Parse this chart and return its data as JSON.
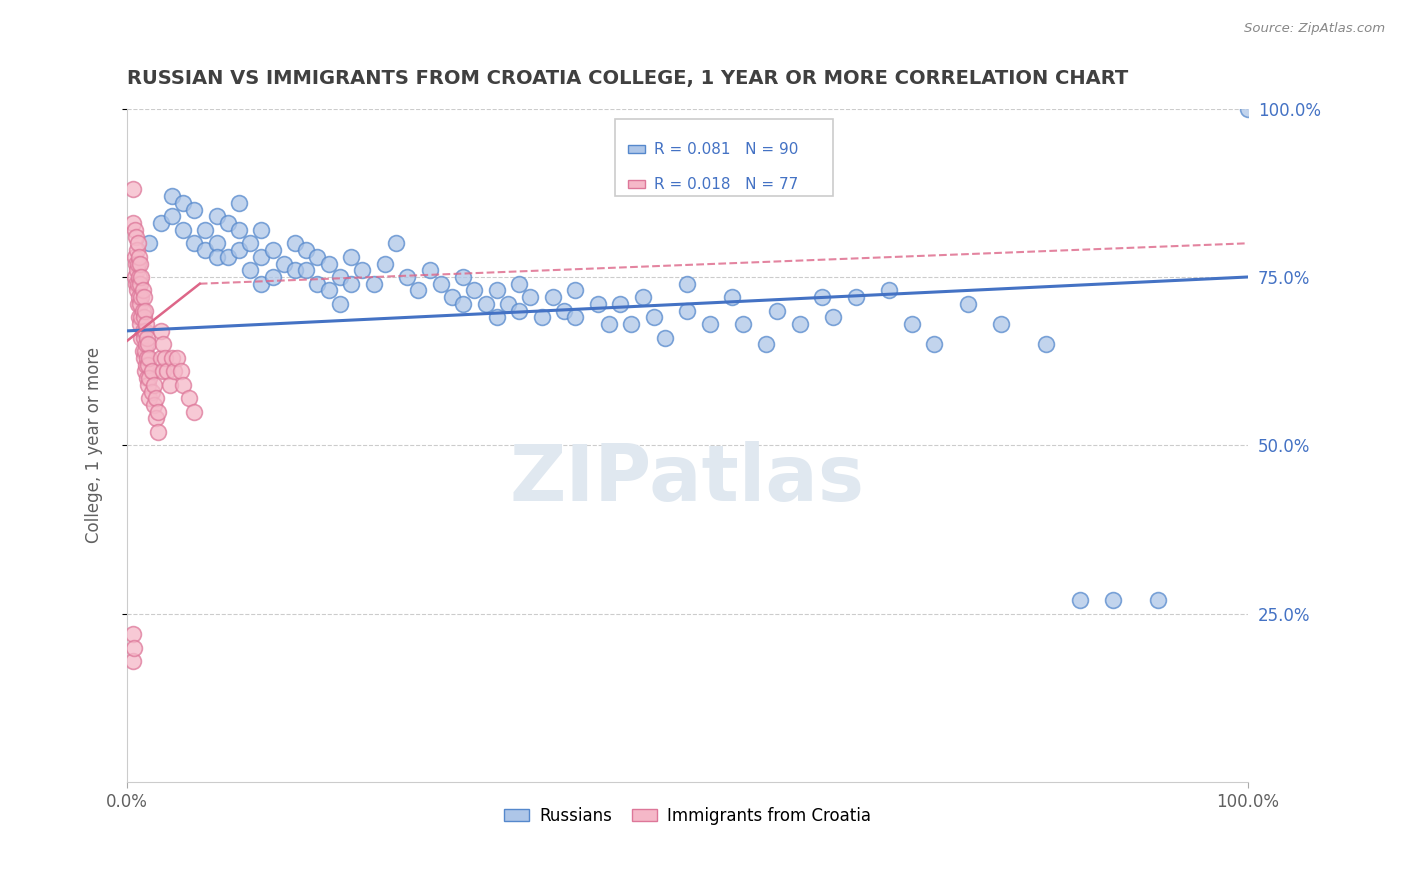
{
  "title": "RUSSIAN VS IMMIGRANTS FROM CROATIA COLLEGE, 1 YEAR OR MORE CORRELATION CHART",
  "source": "Source: ZipAtlas.com",
  "ylabel": "College, 1 year or more",
  "xlim": [
    0.0,
    1.0
  ],
  "ylim": [
    0.0,
    1.0
  ],
  "ytick_labels": [
    "25.0%",
    "50.0%",
    "75.0%",
    "100.0%"
  ],
  "ytick_positions": [
    0.25,
    0.5,
    0.75,
    1.0
  ],
  "blue_R": "R = 0.081",
  "blue_N": "N = 90",
  "pink_R": "R = 0.018",
  "pink_N": "N = 77",
  "legend_russians": "Russians",
  "legend_croatia": "Immigrants from Croatia",
  "blue_color": "#aec6e8",
  "pink_color": "#f5b8c8",
  "blue_edge_color": "#5588cc",
  "pink_edge_color": "#dd7799",
  "blue_line_color": "#4472c4",
  "pink_line_color": "#dd6688",
  "watermark": "ZIPatlas",
  "blue_points": [
    [
      0.02,
      0.8
    ],
    [
      0.03,
      0.83
    ],
    [
      0.04,
      0.87
    ],
    [
      0.04,
      0.84
    ],
    [
      0.05,
      0.86
    ],
    [
      0.05,
      0.82
    ],
    [
      0.06,
      0.85
    ],
    [
      0.06,
      0.8
    ],
    [
      0.07,
      0.82
    ],
    [
      0.07,
      0.79
    ],
    [
      0.08,
      0.84
    ],
    [
      0.08,
      0.8
    ],
    [
      0.08,
      0.78
    ],
    [
      0.09,
      0.83
    ],
    [
      0.09,
      0.78
    ],
    [
      0.1,
      0.86
    ],
    [
      0.1,
      0.82
    ],
    [
      0.1,
      0.79
    ],
    [
      0.11,
      0.8
    ],
    [
      0.11,
      0.76
    ],
    [
      0.12,
      0.82
    ],
    [
      0.12,
      0.78
    ],
    [
      0.12,
      0.74
    ],
    [
      0.13,
      0.79
    ],
    [
      0.13,
      0.75
    ],
    [
      0.14,
      0.77
    ],
    [
      0.15,
      0.8
    ],
    [
      0.15,
      0.76
    ],
    [
      0.16,
      0.79
    ],
    [
      0.16,
      0.76
    ],
    [
      0.17,
      0.78
    ],
    [
      0.17,
      0.74
    ],
    [
      0.18,
      0.77
    ],
    [
      0.18,
      0.73
    ],
    [
      0.19,
      0.75
    ],
    [
      0.19,
      0.71
    ],
    [
      0.2,
      0.78
    ],
    [
      0.2,
      0.74
    ],
    [
      0.21,
      0.76
    ],
    [
      0.22,
      0.74
    ],
    [
      0.23,
      0.77
    ],
    [
      0.24,
      0.8
    ],
    [
      0.25,
      0.75
    ],
    [
      0.26,
      0.73
    ],
    [
      0.27,
      0.76
    ],
    [
      0.28,
      0.74
    ],
    [
      0.29,
      0.72
    ],
    [
      0.3,
      0.75
    ],
    [
      0.3,
      0.71
    ],
    [
      0.31,
      0.73
    ],
    [
      0.32,
      0.71
    ],
    [
      0.33,
      0.73
    ],
    [
      0.33,
      0.69
    ],
    [
      0.34,
      0.71
    ],
    [
      0.35,
      0.74
    ],
    [
      0.35,
      0.7
    ],
    [
      0.36,
      0.72
    ],
    [
      0.37,
      0.69
    ],
    [
      0.38,
      0.72
    ],
    [
      0.39,
      0.7
    ],
    [
      0.4,
      0.73
    ],
    [
      0.4,
      0.69
    ],
    [
      0.42,
      0.71
    ],
    [
      0.43,
      0.68
    ],
    [
      0.44,
      0.71
    ],
    [
      0.45,
      0.68
    ],
    [
      0.46,
      0.72
    ],
    [
      0.47,
      0.69
    ],
    [
      0.48,
      0.66
    ],
    [
      0.5,
      0.74
    ],
    [
      0.5,
      0.7
    ],
    [
      0.52,
      0.68
    ],
    [
      0.54,
      0.72
    ],
    [
      0.55,
      0.68
    ],
    [
      0.57,
      0.65
    ],
    [
      0.58,
      0.7
    ],
    [
      0.6,
      0.68
    ],
    [
      0.62,
      0.72
    ],
    [
      0.63,
      0.69
    ],
    [
      0.65,
      0.72
    ],
    [
      0.68,
      0.73
    ],
    [
      0.7,
      0.68
    ],
    [
      0.72,
      0.65
    ],
    [
      0.75,
      0.71
    ],
    [
      0.78,
      0.68
    ],
    [
      0.82,
      0.65
    ],
    [
      0.85,
      0.27
    ],
    [
      0.88,
      0.27
    ],
    [
      0.92,
      0.27
    ],
    [
      1.0,
      1.0
    ]
  ],
  "pink_points": [
    [
      0.005,
      0.88
    ],
    [
      0.005,
      0.83
    ],
    [
      0.007,
      0.82
    ],
    [
      0.007,
      0.78
    ],
    [
      0.007,
      0.75
    ],
    [
      0.008,
      0.81
    ],
    [
      0.008,
      0.77
    ],
    [
      0.008,
      0.74
    ],
    [
      0.009,
      0.79
    ],
    [
      0.009,
      0.76
    ],
    [
      0.009,
      0.73
    ],
    [
      0.01,
      0.8
    ],
    [
      0.01,
      0.77
    ],
    [
      0.01,
      0.74
    ],
    [
      0.01,
      0.71
    ],
    [
      0.011,
      0.78
    ],
    [
      0.011,
      0.75
    ],
    [
      0.011,
      0.72
    ],
    [
      0.011,
      0.69
    ],
    [
      0.012,
      0.77
    ],
    [
      0.012,
      0.74
    ],
    [
      0.012,
      0.71
    ],
    [
      0.012,
      0.68
    ],
    [
      0.013,
      0.75
    ],
    [
      0.013,
      0.72
    ],
    [
      0.013,
      0.69
    ],
    [
      0.013,
      0.66
    ],
    [
      0.014,
      0.73
    ],
    [
      0.014,
      0.7
    ],
    [
      0.014,
      0.67
    ],
    [
      0.014,
      0.64
    ],
    [
      0.015,
      0.72
    ],
    [
      0.015,
      0.69
    ],
    [
      0.015,
      0.66
    ],
    [
      0.015,
      0.63
    ],
    [
      0.016,
      0.7
    ],
    [
      0.016,
      0.67
    ],
    [
      0.016,
      0.64
    ],
    [
      0.016,
      0.61
    ],
    [
      0.017,
      0.68
    ],
    [
      0.017,
      0.65
    ],
    [
      0.017,
      0.62
    ],
    [
      0.018,
      0.66
    ],
    [
      0.018,
      0.63
    ],
    [
      0.018,
      0.6
    ],
    [
      0.019,
      0.65
    ],
    [
      0.019,
      0.62
    ],
    [
      0.019,
      0.59
    ],
    [
      0.02,
      0.63
    ],
    [
      0.02,
      0.6
    ],
    [
      0.02,
      0.57
    ],
    [
      0.022,
      0.61
    ],
    [
      0.022,
      0.58
    ],
    [
      0.024,
      0.59
    ],
    [
      0.024,
      0.56
    ],
    [
      0.026,
      0.57
    ],
    [
      0.026,
      0.54
    ],
    [
      0.028,
      0.55
    ],
    [
      0.028,
      0.52
    ],
    [
      0.03,
      0.67
    ],
    [
      0.03,
      0.63
    ],
    [
      0.032,
      0.65
    ],
    [
      0.032,
      0.61
    ],
    [
      0.034,
      0.63
    ],
    [
      0.036,
      0.61
    ],
    [
      0.038,
      0.59
    ],
    [
      0.04,
      0.63
    ],
    [
      0.042,
      0.61
    ],
    [
      0.045,
      0.63
    ],
    [
      0.048,
      0.61
    ],
    [
      0.05,
      0.59
    ],
    [
      0.055,
      0.57
    ],
    [
      0.06,
      0.55
    ],
    [
      0.005,
      0.22
    ],
    [
      0.005,
      0.18
    ],
    [
      0.006,
      0.2
    ]
  ]
}
